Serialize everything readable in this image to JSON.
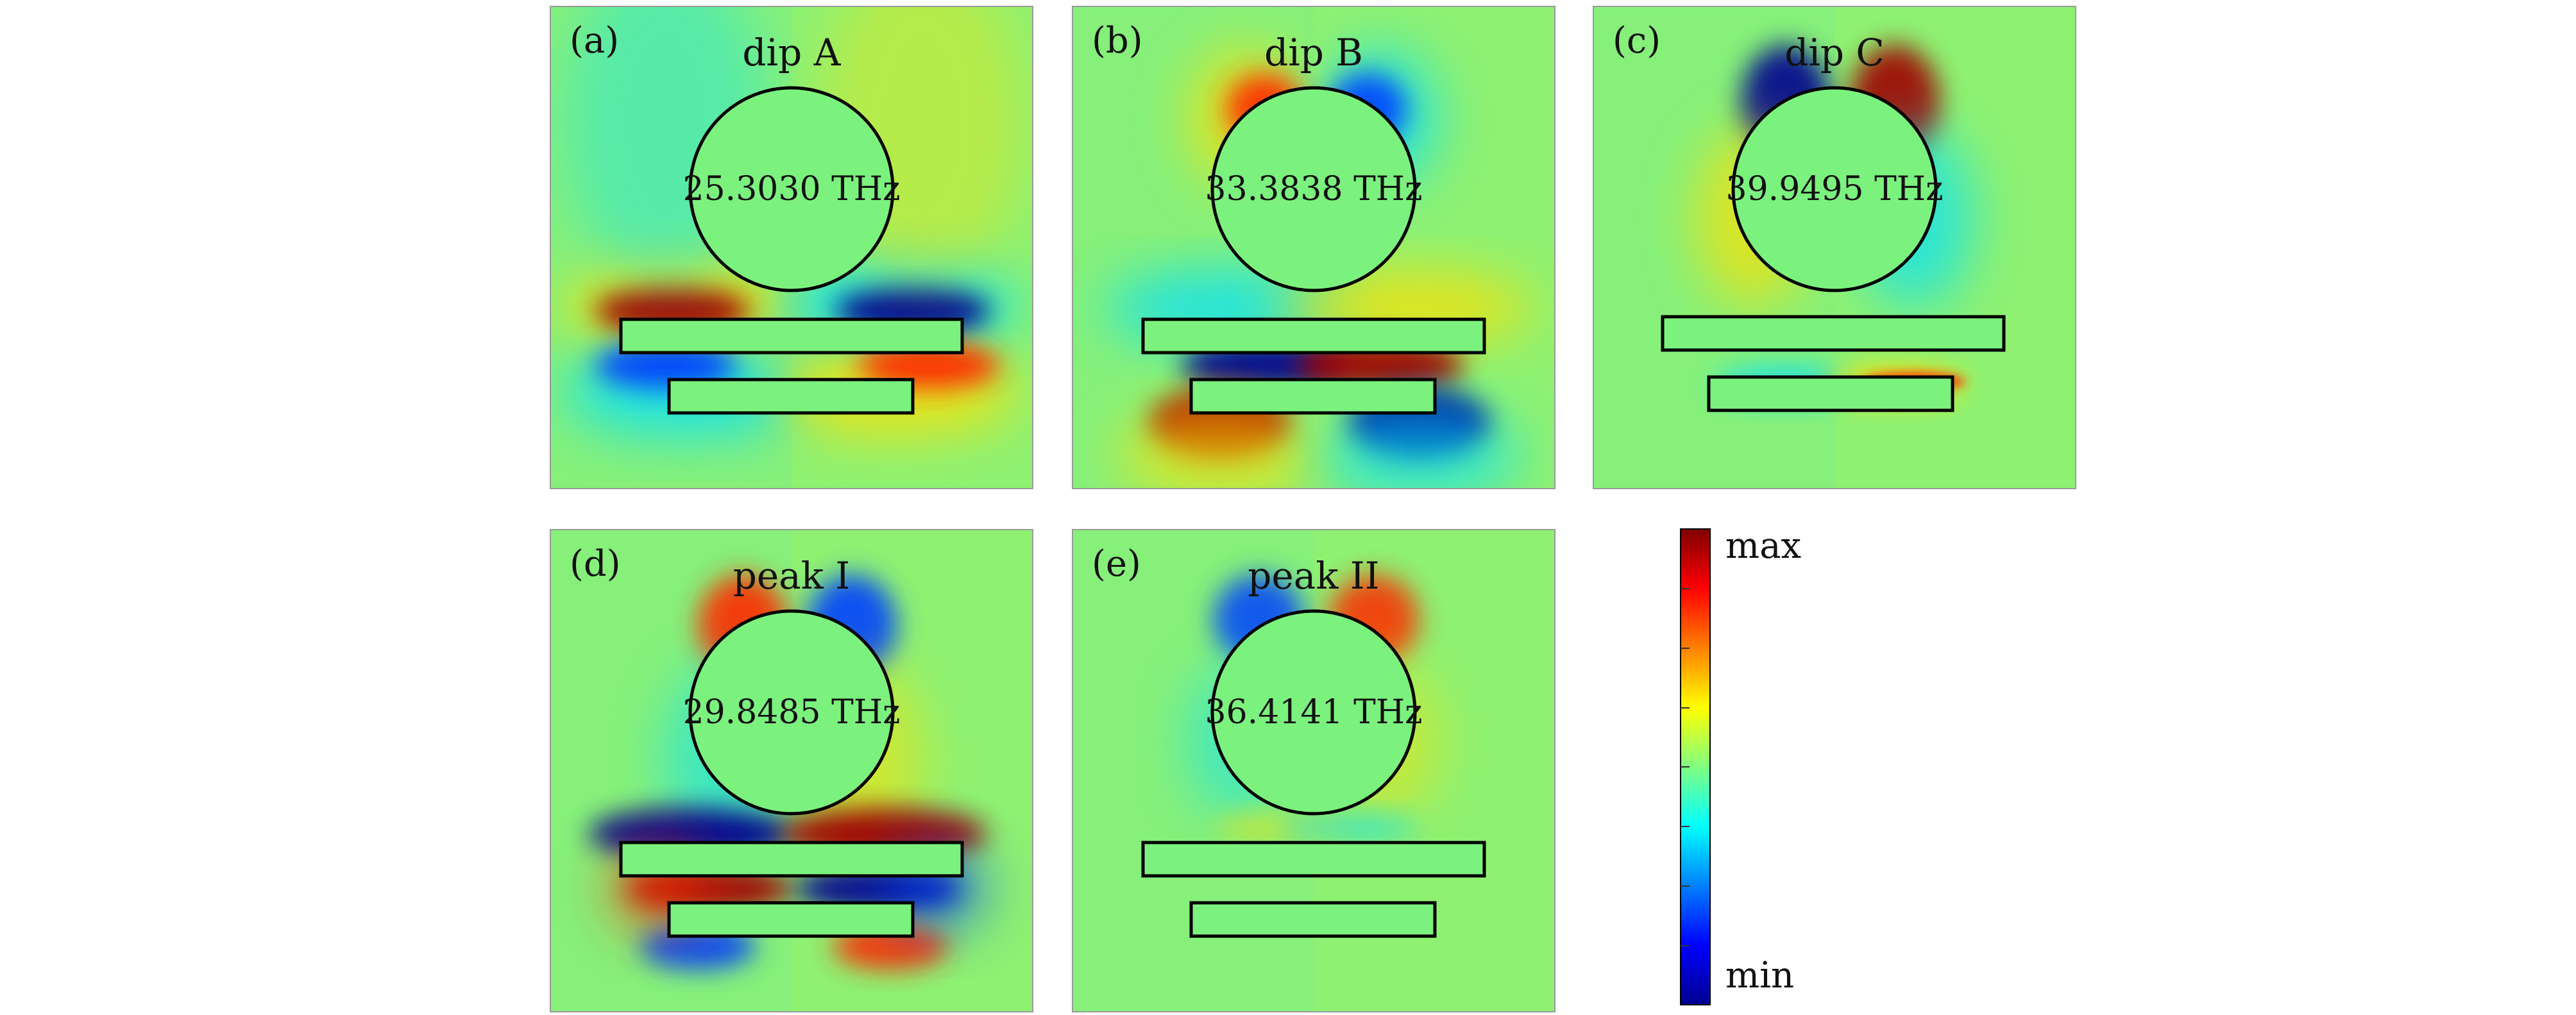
{
  "panels": [
    {
      "id": "a",
      "label": "(a)",
      "title": "dip A",
      "frequency": "25.3030 THz",
      "mode": "a"
    },
    {
      "id": "b",
      "label": "(b)",
      "title": "dip B",
      "frequency": "33.3838 THz",
      "mode": "b"
    },
    {
      "id": "c",
      "label": "(c)",
      "title": "dip C",
      "frequency": "39.9495 THz",
      "mode": "c"
    },
    {
      "id": "d",
      "label": "(d)",
      "title": "peak I",
      "frequency": "29.8485 THz",
      "mode": "d"
    },
    {
      "id": "e",
      "label": "(e)",
      "title": "peak II",
      "frequency": "36.4141 THz",
      "mode": "e"
    }
  ],
  "colorbar": {
    "max_label": "max",
    "min_label": "min",
    "colors": [
      "#800000",
      "#ff0000",
      "#ff8000",
      "#ffff00",
      "#80ff80",
      "#00ffff",
      "#0080ff",
      "#0000ff",
      "#00008f"
    ]
  },
  "colors": {
    "background_field": "#86f07a",
    "positive_strong": "#a00000",
    "positive": "#ff2a00",
    "positive_weak": "#ffe000",
    "negative_strong": "#00008f",
    "negative": "#0040ff",
    "negative_weak": "#00e0ff"
  }
}
